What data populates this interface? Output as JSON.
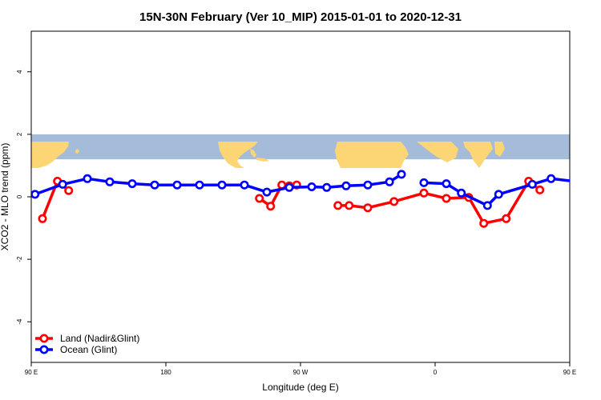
{
  "chart_data": {
    "type": "line",
    "title": "15N-30N February (Ver 10_MIP)   2015-01-01 to 2020-12-31",
    "xlabel": "Longitude (deg E)",
    "ylabel": "XCO2 - MLO trend (ppm)",
    "xlim": [
      90,
      450
    ],
    "ylim": [
      -5.3,
      5.3
    ],
    "x_ticks": [
      {
        "value": 90,
        "label": "90 E"
      },
      {
        "value": 180,
        "label": "180"
      },
      {
        "value": 270,
        "label": "90 W"
      },
      {
        "value": 360,
        "label": "0"
      },
      {
        "value": 450,
        "label": "90 E"
      },
      {
        "value": 540,
        "label": "180"
      }
    ],
    "y_ticks": [
      -4,
      -2,
      0,
      2,
      4
    ],
    "map_strip": {
      "y_range": [
        1.2,
        2.0
      ],
      "ocean_color": "#a4bbd9",
      "land_color": "#fcd675"
    },
    "grid": false,
    "legend_position": "bottom-left",
    "series": [
      {
        "name": "Land (Nadir&Glint)",
        "color": "#ff0000",
        "segments": [
          [
            [
              97.5,
              -0.7
            ],
            [
              107.5,
              0.5
            ],
            [
              115,
              0.2
            ]
          ],
          [
            [
              242.5,
              -0.05
            ],
            [
              250,
              -0.3
            ],
            [
              257.5,
              0.38
            ],
            [
              262.5,
              0.35
            ],
            [
              267.5,
              0.38
            ]
          ],
          [
            [
              295,
              -0.28
            ],
            [
              302.5,
              -0.28
            ],
            [
              315,
              -0.35
            ],
            [
              332.5,
              -0.15
            ],
            [
              352.5,
              0.12
            ],
            [
              367.5,
              -0.05
            ],
            [
              382.5,
              -0.02
            ],
            [
              392.5,
              -0.85
            ],
            [
              407.5,
              -0.7
            ],
            [
              422.5,
              0.5
            ],
            [
              430,
              0.22
            ]
          ]
        ]
      },
      {
        "name": "Ocean (Glint)",
        "color": "#0000ff",
        "segments": [
          [
            [
              92.5,
              0.08
            ],
            [
              111,
              0.4
            ],
            [
              127.5,
              0.58
            ],
            [
              142.5,
              0.48
            ],
            [
              157.5,
              0.42
            ],
            [
              172.5,
              0.38
            ],
            [
              187.5,
              0.38
            ],
            [
              202.5,
              0.38
            ],
            [
              217.5,
              0.38
            ],
            [
              232.5,
              0.38
            ],
            [
              247.5,
              0.15
            ],
            [
              262.5,
              0.3
            ],
            [
              277.5,
              0.32
            ],
            [
              287.5,
              0.3
            ],
            [
              300.5,
              0.35
            ],
            [
              315,
              0.38
            ],
            [
              329.5,
              0.48
            ],
            [
              337.5,
              0.72
            ]
          ],
          [
            [
              352.5,
              0.45
            ],
            [
              367.5,
              0.42
            ],
            [
              377.5,
              0.12
            ],
            [
              395,
              -0.28
            ],
            [
              402.5,
              0.08
            ],
            [
              425,
              0.4
            ],
            [
              437.5,
              0.58
            ],
            [
              452.5,
              0.5
            ],
            [
              467.5,
              0.42
            ],
            [
              482.5,
              0.38
            ]
          ]
        ]
      }
    ]
  }
}
